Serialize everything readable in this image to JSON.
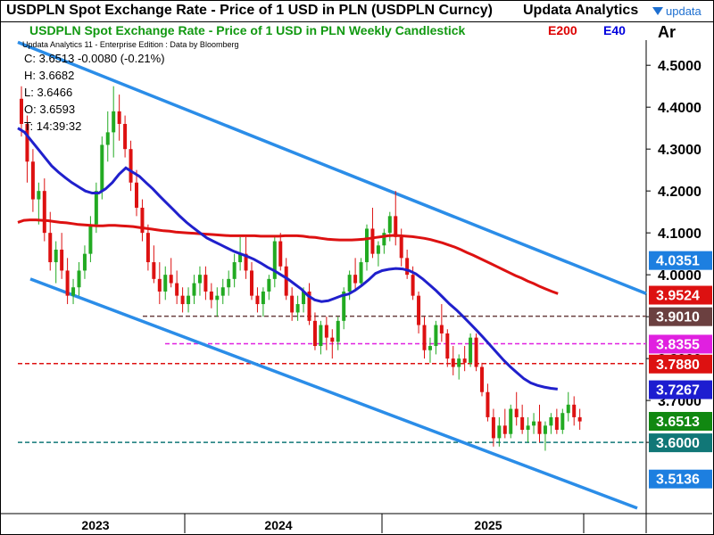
{
  "window": {
    "title": "USDPLN Spot Exchange Rate - Price of 1 USD in PLN (USDPLN Curncy)",
    "brand": "Updata Analytics",
    "logo_text": "updata"
  },
  "readout": {
    "close": "C: 3.6513  -0.0080 (-0.21%)",
    "high": "H: 3.6682",
    "low": "L: 3.6466",
    "open": "O: 3.6593",
    "time": "T: 14:39:32"
  },
  "chart_data": {
    "type": "candlestick",
    "title": "USDPLN Spot Exchange Rate - Price of 1 USD in PLN Weekly Candlestick",
    "meta": "Updata Analytics 11 - Enterprise Edition : Data by Bloomberg",
    "scale_label": "Ar",
    "y_ticks": [
      4.5,
      4.4,
      4.3,
      4.2,
      4.1,
      4.0,
      3.9,
      3.8,
      3.7,
      3.6
    ],
    "y_tick_labels": [
      "4.5000",
      "4.4000",
      "4.3000",
      "4.2000",
      "4.1000",
      "4.0000",
      "3.9000",
      "3.8000",
      "3.7000",
      "3.6000"
    ],
    "ylim": [
      3.43,
      4.56
    ],
    "x_labels": [
      "2023",
      "2024",
      "2025"
    ],
    "legend": [
      {
        "name": "E200",
        "color": "#dd0000"
      },
      {
        "name": "E40",
        "color": "#0000dd"
      }
    ],
    "bull_color": "#22aa22",
    "bear_color": "#dd1111",
    "ohlc": [
      [
        4.42,
        4.45,
        4.33,
        4.36
      ],
      [
        4.36,
        4.38,
        4.22,
        4.27
      ],
      [
        4.27,
        4.3,
        4.15,
        4.18
      ],
      [
        4.18,
        4.22,
        4.12,
        4.2
      ],
      [
        4.2,
        4.23,
        4.08,
        4.1
      ],
      [
        4.1,
        4.15,
        4.01,
        4.03
      ],
      [
        4.03,
        4.08,
        3.98,
        4.06
      ],
      [
        4.06,
        4.1,
        3.99,
        4.01
      ],
      [
        4.01,
        4.04,
        3.93,
        3.95
      ],
      [
        3.95,
        3.99,
        3.93,
        3.97
      ],
      [
        3.97,
        4.03,
        3.95,
        4.01
      ],
      [
        4.01,
        4.07,
        3.99,
        4.05
      ],
      [
        4.05,
        4.14,
        4.03,
        4.12
      ],
      [
        4.12,
        4.22,
        4.1,
        4.2
      ],
      [
        4.2,
        4.33,
        4.18,
        4.31
      ],
      [
        4.31,
        4.39,
        4.27,
        4.34
      ],
      [
        4.34,
        4.45,
        4.28,
        4.39
      ],
      [
        4.39,
        4.43,
        4.32,
        4.36
      ],
      [
        4.36,
        4.38,
        4.28,
        4.3
      ],
      [
        4.3,
        4.32,
        4.2,
        4.22
      ],
      [
        4.22,
        4.25,
        4.14,
        4.16
      ],
      [
        4.16,
        4.18,
        4.08,
        4.1
      ],
      [
        4.1,
        4.12,
        4.01,
        4.03
      ],
      [
        4.03,
        4.07,
        3.98,
        3.99
      ],
      [
        3.99,
        4.03,
        3.93,
        3.96
      ],
      [
        3.96,
        4.02,
        3.94,
        4.0
      ],
      [
        4.0,
        4.04,
        3.97,
        3.98
      ],
      [
        3.98,
        4.01,
        3.93,
        3.95
      ],
      [
        3.95,
        3.97,
        3.91,
        3.93
      ],
      [
        3.93,
        3.97,
        3.91,
        3.95
      ],
      [
        3.95,
        4.0,
        3.93,
        3.98
      ],
      [
        3.98,
        4.02,
        3.95,
        4.0
      ],
      [
        4.0,
        4.02,
        3.94,
        3.96
      ],
      [
        3.96,
        3.98,
        3.92,
        3.94
      ],
      [
        3.94,
        3.97,
        3.9,
        3.95
      ],
      [
        3.95,
        3.99,
        3.93,
        3.97
      ],
      [
        3.97,
        4.01,
        3.95,
        3.99
      ],
      [
        3.99,
        4.05,
        3.97,
        4.03
      ],
      [
        4.03,
        4.09,
        4.01,
        4.05
      ],
      [
        4.05,
        4.09,
        3.99,
        4.01
      ],
      [
        4.01,
        4.03,
        3.94,
        3.95
      ],
      [
        3.95,
        3.97,
        3.91,
        3.93
      ],
      [
        3.93,
        3.97,
        3.9,
        3.96
      ],
      [
        3.96,
        4.0,
        3.94,
        3.99
      ],
      [
        3.99,
        4.09,
        3.97,
        4.08
      ],
      [
        4.08,
        4.1,
        4.01,
        4.02
      ],
      [
        4.02,
        4.04,
        3.94,
        3.95
      ],
      [
        3.95,
        3.97,
        3.89,
        3.91
      ],
      [
        3.91,
        3.95,
        3.89,
        3.93
      ],
      [
        3.93,
        3.97,
        3.91,
        3.96
      ],
      [
        3.96,
        3.98,
        3.88,
        3.89
      ],
      [
        3.89,
        3.91,
        3.82,
        3.83
      ],
      [
        3.83,
        3.89,
        3.81,
        3.88
      ],
      [
        3.88,
        3.9,
        3.82,
        3.85
      ],
      [
        3.85,
        3.87,
        3.8,
        3.84
      ],
      [
        3.84,
        3.9,
        3.82,
        3.89
      ],
      [
        3.89,
        3.97,
        3.87,
        3.96
      ],
      [
        3.96,
        4.01,
        3.94,
        4.0
      ],
      [
        4.0,
        4.04,
        3.96,
        3.98
      ],
      [
        3.98,
        4.04,
        3.97,
        4.03
      ],
      [
        4.03,
        4.12,
        4.01,
        4.11
      ],
      [
        4.11,
        4.16,
        4.04,
        4.05
      ],
      [
        4.05,
        4.08,
        4.02,
        4.07
      ],
      [
        4.07,
        4.11,
        4.05,
        4.1
      ],
      [
        4.1,
        4.15,
        4.08,
        4.14
      ],
      [
        4.14,
        4.2,
        4.07,
        4.09
      ],
      [
        4.09,
        4.11,
        4.02,
        4.04
      ],
      [
        4.04,
        4.06,
        3.99,
        4.0
      ],
      [
        4.0,
        4.02,
        3.94,
        3.95
      ],
      [
        3.95,
        3.96,
        3.86,
        3.88
      ],
      [
        3.88,
        3.9,
        3.8,
        3.82
      ],
      [
        3.82,
        3.85,
        3.79,
        3.83
      ],
      [
        3.83,
        3.89,
        3.81,
        3.88
      ],
      [
        3.88,
        3.93,
        3.84,
        3.86
      ],
      [
        3.86,
        3.87,
        3.78,
        3.8
      ],
      [
        3.8,
        3.83,
        3.76,
        3.78
      ],
      [
        3.78,
        3.81,
        3.75,
        3.8
      ],
      [
        3.8,
        3.83,
        3.77,
        3.79
      ],
      [
        3.79,
        3.86,
        3.78,
        3.85
      ],
      [
        3.85,
        3.86,
        3.77,
        3.78
      ],
      [
        3.78,
        3.79,
        3.71,
        3.72
      ],
      [
        3.72,
        3.74,
        3.65,
        3.66
      ],
      [
        3.66,
        3.68,
        3.59,
        3.61
      ],
      [
        3.61,
        3.66,
        3.59,
        3.64
      ],
      [
        3.64,
        3.68,
        3.61,
        3.62
      ],
      [
        3.62,
        3.69,
        3.61,
        3.68
      ],
      [
        3.68,
        3.72,
        3.64,
        3.66
      ],
      [
        3.66,
        3.69,
        3.62,
        3.63
      ],
      [
        3.63,
        3.66,
        3.6,
        3.64
      ],
      [
        3.64,
        3.67,
        3.62,
        3.65
      ],
      [
        3.65,
        3.69,
        3.6,
        3.62
      ],
      [
        3.62,
        3.65,
        3.58,
        3.64
      ],
      [
        3.64,
        3.67,
        3.62,
        3.66
      ],
      [
        3.66,
        3.68,
        3.62,
        3.63
      ],
      [
        3.63,
        3.68,
        3.62,
        3.67
      ],
      [
        3.67,
        3.72,
        3.65,
        3.69
      ],
      [
        3.69,
        3.71,
        3.64,
        3.66
      ],
      [
        3.66,
        3.68,
        3.63,
        3.65
      ]
    ],
    "ema200": [
      4.125,
      4.13,
      4.131,
      4.131,
      4.13,
      4.129,
      4.127,
      4.125,
      4.124,
      4.122,
      4.12,
      4.119,
      4.118,
      4.117,
      4.117,
      4.118,
      4.118,
      4.117,
      4.116,
      4.115,
      4.113,
      4.111,
      4.109,
      4.107,
      4.105,
      4.104,
      4.102,
      4.101,
      4.1,
      4.099,
      4.098,
      4.097,
      4.096,
      4.095,
      4.094,
      4.093,
      4.093,
      4.093,
      4.093,
      4.093,
      4.092,
      4.092,
      4.092,
      4.092,
      4.093,
      4.093,
      4.093,
      4.092,
      4.09,
      4.089,
      4.087,
      4.085,
      4.084,
      4.083,
      4.083,
      4.083,
      4.084,
      4.085,
      4.087,
      4.089,
      4.091,
      4.093,
      4.094,
      4.093,
      4.092,
      4.091,
      4.089,
      4.087,
      4.084,
      4.08,
      4.076,
      4.071,
      4.066,
      4.06,
      4.053,
      4.047,
      4.04,
      4.033,
      4.026,
      4.019,
      4.012,
      4.005,
      3.998,
      3.992,
      3.985,
      3.979,
      3.972,
      3.966,
      3.96,
      3.955
    ],
    "ema40": [
      4.35,
      4.34,
      4.32,
      4.3,
      4.28,
      4.26,
      4.245,
      4.232,
      4.22,
      4.21,
      4.2,
      4.195,
      4.195,
      4.205,
      4.22,
      4.24,
      4.255,
      4.245,
      4.235,
      4.22,
      4.205,
      4.188,
      4.172,
      4.156,
      4.14,
      4.125,
      4.112,
      4.1,
      4.088,
      4.08,
      4.072,
      4.064,
      4.056,
      4.05,
      4.044,
      4.037,
      4.028,
      4.018,
      4.01,
      4.0,
      3.99,
      3.978,
      3.966,
      3.95,
      3.94,
      3.936,
      3.938,
      3.944,
      3.95,
      3.954,
      3.963,
      3.975,
      3.988,
      4.003,
      4.01,
      4.013,
      4.015,
      4.014,
      4.01,
      4.002,
      3.99,
      3.976,
      3.962,
      3.946,
      3.93,
      3.916,
      3.9,
      3.884,
      3.867,
      3.85,
      3.832,
      3.814,
      3.796,
      3.78,
      3.766,
      3.752,
      3.742,
      3.736,
      3.732,
      3.729,
      3.727
    ],
    "trend_channel": [
      {
        "name": "upper",
        "from": [
          0,
          4.555
        ],
        "to": [
          1,
          3.955
        ]
      },
      {
        "name": "lower",
        "from": [
          0,
          3.99
        ],
        "to": [
          1,
          3.443
        ]
      }
    ],
    "horizontal_lines": [
      {
        "value": 3.901,
        "color": "#6b4040"
      },
      {
        "value": 3.8355,
        "color": "#e020e0"
      },
      {
        "value": 3.788,
        "color": "#dd1111"
      },
      {
        "value": 3.6,
        "color": "#117777"
      }
    ],
    "price_tags": [
      {
        "value": 4.0351,
        "label": "4.0351",
        "color": "#1d7fe0"
      },
      {
        "value": 3.9524,
        "label": "3.9524",
        "color": "#dd1111"
      },
      {
        "value": 3.901,
        "label": "3.9010",
        "color": "#6b4040"
      },
      {
        "value": 3.8355,
        "label": "3.8355",
        "color": "#e020e0"
      },
      {
        "value": 3.788,
        "label": "3.7880",
        "color": "#dd1111"
      },
      {
        "value": 3.7267,
        "label": "3.7267",
        "color": "#1d1dd0"
      },
      {
        "value": 3.6513,
        "label": "3.6513",
        "color": "#118811"
      },
      {
        "value": 3.6,
        "label": "3.6000",
        "color": "#117777"
      },
      {
        "value": 3.5136,
        "label": "3.5136",
        "color": "#1d7fe0"
      }
    ]
  }
}
